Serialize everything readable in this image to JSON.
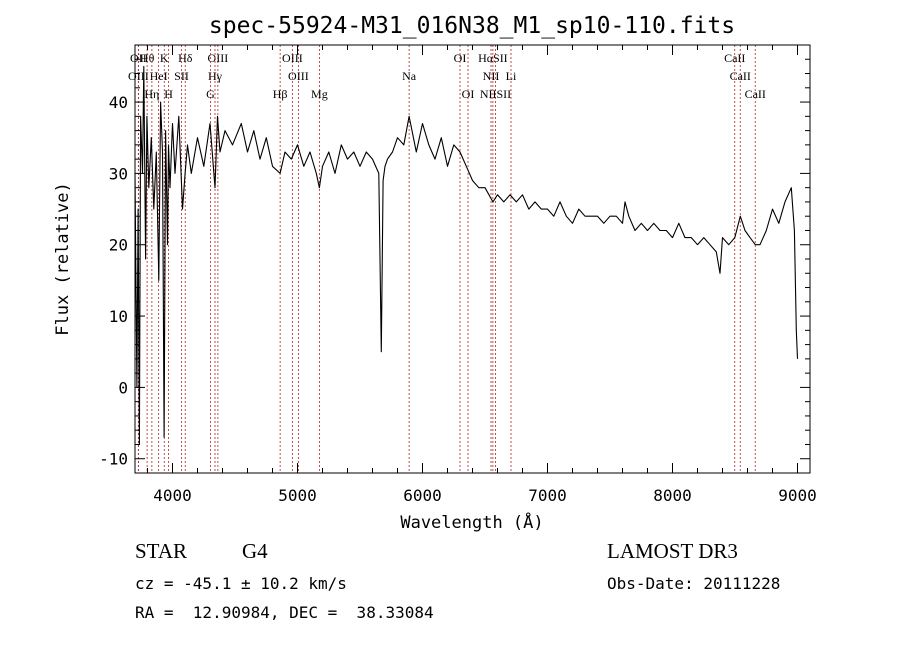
{
  "chart_data": {
    "type": "line",
    "title": "spec-55924-M31_016N38_M1_sp10-110.fits",
    "xlabel": "Wavelength (Å)",
    "ylabel": "Flux (relative)",
    "xlim": [
      3700,
      9100
    ],
    "ylim": [
      -12,
      48
    ],
    "xticks": [
      4000,
      5000,
      6000,
      7000,
      8000,
      9000
    ],
    "yticks": [
      -10,
      0,
      10,
      20,
      30,
      40
    ],
    "series": [
      {
        "name": "flux",
        "x": [
          3700,
          3715,
          3725,
          3735,
          3745,
          3760,
          3770,
          3785,
          3795,
          3810,
          3830,
          3850,
          3870,
          3890,
          3905,
          3920,
          3933,
          3945,
          3960,
          3968,
          3980,
          4000,
          4020,
          4050,
          4080,
          4101,
          4120,
          4150,
          4200,
          4250,
          4300,
          4340,
          4360,
          4380,
          4420,
          4480,
          4550,
          4600,
          4650,
          4700,
          4750,
          4800,
          4861,
          4900,
          4950,
          5000,
          5050,
          5100,
          5150,
          5175,
          5200,
          5250,
          5300,
          5350,
          5400,
          5450,
          5500,
          5550,
          5600,
          5650,
          5670,
          5685,
          5700,
          5720,
          5760,
          5800,
          5850,
          5893,
          5950,
          6000,
          6050,
          6100,
          6150,
          6200,
          6250,
          6300,
          6350,
          6400,
          6450,
          6500,
          6563,
          6600,
          6650,
          6700,
          6750,
          6800,
          6850,
          6900,
          6950,
          7000,
          7050,
          7100,
          7150,
          7200,
          7250,
          7300,
          7350,
          7400,
          7450,
          7500,
          7550,
          7600,
          7620,
          7650,
          7700,
          7750,
          7800,
          7850,
          7900,
          7950,
          8000,
          8050,
          8100,
          8150,
          8200,
          8250,
          8300,
          8350,
          8380,
          8400,
          8450,
          8498,
          8542,
          8580,
          8620,
          8662,
          8700,
          8750,
          8800,
          8850,
          8900,
          8950,
          8975,
          8990,
          9000
        ],
        "y": [
          30,
          0,
          25,
          -8,
          38,
          30,
          45,
          18,
          38,
          28,
          35,
          25,
          33,
          15,
          40,
          33,
          -7,
          36,
          20,
          34,
          28,
          37,
          30,
          38,
          25,
          30,
          34,
          30,
          35,
          31,
          37,
          28,
          38,
          33,
          36,
          34,
          37,
          33,
          36,
          32,
          35,
          31,
          30,
          33,
          32,
          34,
          31,
          33,
          30,
          28,
          31,
          33,
          30,
          34,
          32,
          33,
          31,
          33,
          32,
          30,
          5,
          29,
          31,
          32,
          33,
          35,
          34,
          38,
          33,
          37,
          34,
          32,
          35,
          31,
          34,
          33,
          31,
          29,
          28,
          28,
          26,
          27,
          26,
          27,
          26,
          27,
          25,
          26,
          25,
          25,
          24,
          26,
          24,
          23,
          25,
          24,
          24,
          24,
          23,
          24,
          24,
          23,
          26,
          24,
          22,
          23,
          22,
          23,
          22,
          22,
          21,
          23,
          21,
          21,
          20,
          21,
          20,
          19,
          16,
          21,
          20,
          21,
          24,
          22,
          21,
          20,
          20,
          22,
          25,
          23,
          26,
          28,
          22,
          8,
          4
        ]
      }
    ],
    "spectral_lines": [
      {
        "label": "Hθ",
        "wavelength": 3797
      },
      {
        "label": "K",
        "wavelength": 3934
      },
      {
        "label": "Hδ",
        "wavelength": 4102
      },
      {
        "label": "OIII",
        "wavelength": 4363
      },
      {
        "label": "OIII",
        "wavelength": 4959
      },
      {
        "label": "HαSII",
        "wavelength": 6563
      },
      {
        "label": "OI",
        "wavelength": 6300
      },
      {
        "label": "CaII",
        "wavelength": 8498
      },
      {
        "label": "OII",
        "wavelength": 3727
      },
      {
        "label": "HeI",
        "wavelength": 3889
      },
      {
        "label": "SII",
        "wavelength": 4072
      },
      {
        "label": "Hγ",
        "wavelength": 4340
      },
      {
        "label": "OIII",
        "wavelength": 5007
      },
      {
        "label": "Na",
        "wavelength": 5893
      },
      {
        "label": "NII",
        "wavelength": 6548
      },
      {
        "label": "Li",
        "wavelength": 6708
      },
      {
        "label": "CaII",
        "wavelength": 8542
      },
      {
        "label": "OIII",
        "wavelength": 3727
      },
      {
        "label": "Hη",
        "wavelength": 3835
      },
      {
        "label": "H",
        "wavelength": 3969
      },
      {
        "label": "G",
        "wavelength": 4304
      },
      {
        "label": "Hβ",
        "wavelength": 4861
      },
      {
        "label": "Mg",
        "wavelength": 5175
      },
      {
        "label": "OI",
        "wavelength": 6364
      },
      {
        "label": "NIISII",
        "wavelength": 6584
      },
      {
        "label": "CaII",
        "wavelength": 8662
      }
    ]
  },
  "info": {
    "class": "STAR",
    "subclass": "G4",
    "survey": "LAMOST DR3",
    "cz": "cz = -45.1 ± 10.2 km/s",
    "obsdate": "Obs-Date: 20111228",
    "radec": "RA =  12.90984, DEC =  38.33084"
  }
}
